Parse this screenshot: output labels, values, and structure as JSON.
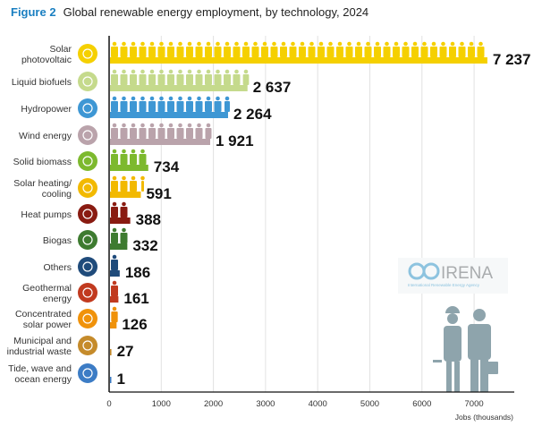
{
  "figure_label": "Figure 2",
  "chart_data": {
    "type": "bar",
    "orientation": "horizontal",
    "title": "Global renewable energy employment, by technology, 2024",
    "xlabel": "Jobs (thousands)",
    "ylabel": "",
    "xlim": [
      0,
      7800
    ],
    "xticks": [
      0,
      1000,
      2000,
      3000,
      4000,
      5000,
      6000,
      7000
    ],
    "xtick_labels": [
      "0",
      "1000",
      "2000",
      "3000",
      "4000",
      "5000",
      "6000",
      "7000"
    ],
    "grid": true,
    "categories": [
      [
        "Solar",
        "photovoltaic"
      ],
      [
        "Liquid biofuels"
      ],
      [
        "Hydropower"
      ],
      [
        "Wind energy"
      ],
      [
        "Solid biomass"
      ],
      [
        "Solar heating/",
        "cooling"
      ],
      [
        "Heat pumps"
      ],
      [
        "Biogas"
      ],
      [
        "Others"
      ],
      [
        "Geothermal",
        "energy"
      ],
      [
        "Concentrated",
        "solar power"
      ],
      [
        "Municipal and",
        "industrial waste"
      ],
      [
        "Tide, wave and",
        "ocean energy"
      ]
    ],
    "values": [
      7237,
      2637,
      2264,
      1921,
      734,
      591,
      388,
      332,
      186,
      161,
      126,
      27,
      1
    ],
    "value_labels": [
      "7 237",
      "2 637",
      "2 264",
      "1 921",
      "734",
      "591",
      "388",
      "332",
      "186",
      "161",
      "126",
      "27",
      "1"
    ],
    "colors": [
      "#f5d000",
      "#c5da8c",
      "#3e97d4",
      "#baa3ab",
      "#7db92e",
      "#f2b900",
      "#891b11",
      "#3e7b30",
      "#1f4b7b",
      "#c13a1f",
      "#f0920a",
      "#c58b2b",
      "#3c7cc5"
    ],
    "icons": [
      "sun-icon",
      "leaf-icon",
      "water-drop-icon",
      "wind-turbine-icon",
      "leaf-icon",
      "sun-icon",
      "heat-coil-icon",
      "leaf-icon",
      "plus-icon",
      "volcano-icon",
      "sun-icon",
      "trash-bin-icon",
      "wave-icon"
    ]
  },
  "logo": {
    "name": "IRENA",
    "subtitle": "International Renewable Energy Agency"
  }
}
